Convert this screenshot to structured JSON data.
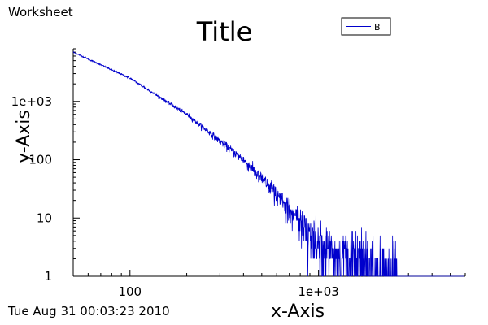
{
  "window": {
    "label": "Worksheet"
  },
  "footer": {
    "timestamp": "Tue Aug 31 00:03:23 2010"
  },
  "chart_data": {
    "type": "line",
    "title": "Title",
    "xlabel": "x-Axis",
    "ylabel": "y-Axis",
    "xscale": "log",
    "yscale": "log",
    "xlim": [
      50,
      6000
    ],
    "ylim": [
      1,
      8000
    ],
    "x_ticks": [
      {
        "value": 100,
        "label": "100"
      },
      {
        "value": 1000,
        "label": "1e+03"
      }
    ],
    "y_ticks": [
      {
        "value": 1,
        "label": "1"
      },
      {
        "value": 10,
        "label": "10"
      },
      {
        "value": 100,
        "label": "100"
      },
      {
        "value": 1000,
        "label": "1e+03"
      }
    ],
    "grid": false,
    "legend": {
      "position": "top-right"
    },
    "series": [
      {
        "name": "B",
        "color": "#0000cc",
        "trend": [
          [
            50,
            7000
          ],
          [
            100,
            2500
          ],
          [
            200,
            600
          ],
          [
            400,
            100
          ],
          [
            700,
            15
          ],
          [
            1000,
            4
          ],
          [
            1500,
            2
          ],
          [
            2500,
            1
          ]
        ],
        "x_end": 5900
      }
    ]
  }
}
